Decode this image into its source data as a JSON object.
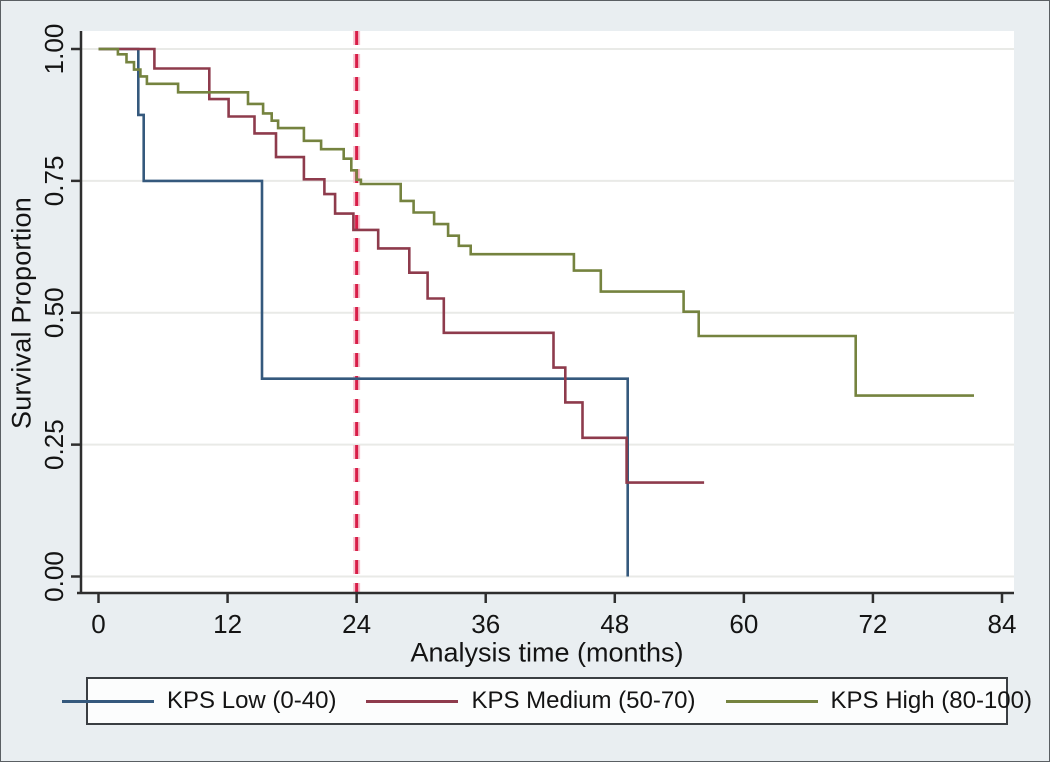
{
  "figure": {
    "background_color": "#e9eef1",
    "plot_background_color": "#ffffff",
    "grid_color": "#e9eae7",
    "axis_color": "#2e2e2e",
    "text_color": "#141414",
    "legend_border_color": "#3a3e42",
    "legend_background_color": "#fcfdfd"
  },
  "chart_data": {
    "type": "line",
    "subtype": "kaplan-meier-step",
    "title": "",
    "xlabel": "Analysis time (months)",
    "ylabel": "Survival Proportion",
    "xlim": [
      0,
      84
    ],
    "ylim": [
      0,
      1
    ],
    "grid": "horizontal-only",
    "legend_position": "bottom",
    "x_ticks": [
      {
        "value": 0,
        "label": "0"
      },
      {
        "value": 12,
        "label": "12"
      },
      {
        "value": 24,
        "label": "24"
      },
      {
        "value": 36,
        "label": "36"
      },
      {
        "value": 48,
        "label": "48"
      },
      {
        "value": 60,
        "label": "60"
      },
      {
        "value": 72,
        "label": "72"
      },
      {
        "value": 84,
        "label": "84"
      }
    ],
    "y_ticks": [
      {
        "value": 0.0,
        "label": "0.00"
      },
      {
        "value": 0.25,
        "label": "0.25"
      },
      {
        "value": 0.5,
        "label": "0.50"
      },
      {
        "value": 0.75,
        "label": "0.75"
      },
      {
        "value": 1.0,
        "label": "1.00"
      }
    ],
    "reference_line": {
      "x": 24,
      "orientation": "vertical",
      "style": "dashed",
      "color": "#d81e48",
      "halo_color": "#f6c3cf"
    },
    "series": [
      {
        "name": "KPS Low (0-40)",
        "color": "#35597d",
        "end_time": 49.2,
        "steps": [
          [
            0,
            1.0
          ],
          [
            3.7,
            0.875
          ],
          [
            4.2,
            0.75
          ],
          [
            15.2,
            0.375
          ],
          [
            49.2,
            0.0
          ]
        ]
      },
      {
        "name": "KPS Medium (50-70)",
        "color": "#8e3b4c",
        "end_time": 56.3,
        "steps": [
          [
            0,
            1.0
          ],
          [
            5.2,
            0.963
          ],
          [
            10.3,
            0.905
          ],
          [
            12.1,
            0.872
          ],
          [
            14.5,
            0.84
          ],
          [
            16.5,
            0.795
          ],
          [
            19.1,
            0.753
          ],
          [
            21.0,
            0.725
          ],
          [
            22.0,
            0.688
          ],
          [
            23.7,
            0.657
          ],
          [
            26.0,
            0.622
          ],
          [
            28.9,
            0.576
          ],
          [
            30.6,
            0.527
          ],
          [
            32.1,
            0.462
          ],
          [
            42.3,
            0.396
          ],
          [
            43.4,
            0.33
          ],
          [
            45.0,
            0.263
          ],
          [
            49.1,
            0.178
          ]
        ]
      },
      {
        "name": "KPS High (80-100)",
        "color": "#75833f",
        "end_time": 81.4,
        "steps": [
          [
            0,
            1.0
          ],
          [
            1.8,
            0.99
          ],
          [
            2.6,
            0.975
          ],
          [
            3.3,
            0.961
          ],
          [
            3.9,
            0.948
          ],
          [
            4.5,
            0.934
          ],
          [
            7.4,
            0.918
          ],
          [
            13.9,
            0.896
          ],
          [
            15.3,
            0.878
          ],
          [
            16.1,
            0.864
          ],
          [
            16.7,
            0.85
          ],
          [
            19.1,
            0.826
          ],
          [
            20.7,
            0.81
          ],
          [
            22.8,
            0.792
          ],
          [
            23.5,
            0.77
          ],
          [
            24.0,
            0.752
          ],
          [
            24.4,
            0.744
          ],
          [
            28.1,
            0.712
          ],
          [
            29.3,
            0.69
          ],
          [
            31.2,
            0.668
          ],
          [
            32.5,
            0.646
          ],
          [
            33.5,
            0.627
          ],
          [
            34.6,
            0.611
          ],
          [
            44.2,
            0.58
          ],
          [
            46.7,
            0.54
          ],
          [
            54.4,
            0.502
          ],
          [
            55.8,
            0.456
          ],
          [
            70.4,
            0.343
          ]
        ]
      }
    ]
  }
}
